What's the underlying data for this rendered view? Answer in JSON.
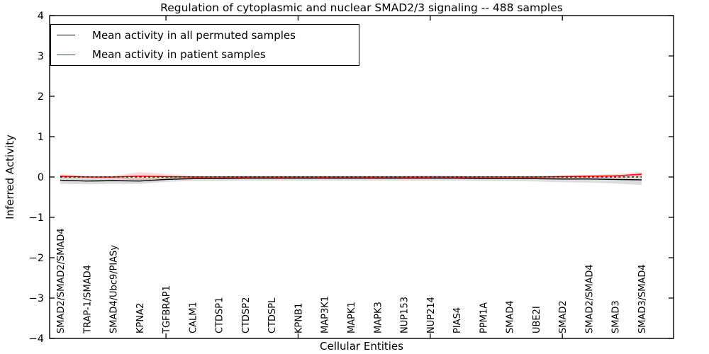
{
  "title": "Regulation of cytoplasmic and nuclear SMAD2/3 signaling -- 488 samples",
  "chart_data": {
    "type": "line",
    "title": "Regulation of cytoplasmic and nuclear SMAD2/3 signaling -- 488 samples",
    "xlabel": "Cellular Entities",
    "ylabel": "Inferred Activity",
    "ylim": [
      -4,
      4
    ],
    "yticks": [
      4,
      3,
      2,
      1,
      0,
      -1,
      -2,
      -3,
      -4
    ],
    "xtick_indices": [
      4,
      9,
      14,
      19
    ],
    "grid": false,
    "legend_position": "upper left",
    "categories": [
      "SMAD2/SMAD2/SMAD4",
      "TRAP-1/SMAD4",
      "SMAD4/Ubc9/PIASy",
      "KPNA2",
      "TGFBRAP1",
      "CALM1",
      "CTDSP1",
      "CTDSP2",
      "CTDSPL",
      "KPNB1",
      "MAP3K1",
      "MAPK1",
      "MAPK3",
      "NUP153",
      "NUP214",
      "PIAS4",
      "PPM1A",
      "SMAD4",
      "UBE2I",
      "SMAD2",
      "SMAD2/SMAD4",
      "SMAD3",
      "SMAD3/SMAD4"
    ],
    "series": [
      {
        "name": "Mean activity in all permuted samples",
        "color": "#000000",
        "values": [
          -0.08,
          -0.1,
          -0.09,
          -0.1,
          -0.06,
          -0.04,
          -0.04,
          -0.03,
          -0.03,
          -0.03,
          -0.03,
          -0.03,
          -0.03,
          -0.03,
          -0.03,
          -0.03,
          -0.04,
          -0.04,
          -0.04,
          -0.05,
          -0.05,
          -0.06,
          -0.07
        ],
        "std": [
          0.09,
          0.08,
          0.08,
          0.07,
          0.06,
          0.06,
          0.06,
          0.06,
          0.06,
          0.06,
          0.06,
          0.06,
          0.06,
          0.06,
          0.06,
          0.06,
          0.06,
          0.06,
          0.07,
          0.08,
          0.09,
          0.1,
          0.13
        ],
        "band_color": "#aaaaaa",
        "band_opacity": 0.4
      },
      {
        "name": "Mean activity in patient samples",
        "color": "#ff0000",
        "values": [
          0.02,
          0.0,
          0.0,
          0.02,
          0.01,
          0.0,
          0.0,
          0.0,
          0.0,
          0.0,
          0.0,
          0.0,
          0.0,
          0.0,
          0.0,
          0.0,
          0.0,
          0.0,
          0.0,
          0.01,
          0.02,
          0.03,
          0.07
        ],
        "std": [
          0.05,
          0.03,
          0.03,
          0.1,
          0.07,
          0.03,
          0.02,
          0.02,
          0.02,
          0.02,
          0.02,
          0.02,
          0.02,
          0.02,
          0.03,
          0.02,
          0.02,
          0.02,
          0.02,
          0.03,
          0.03,
          0.04,
          0.05
        ],
        "band_color": "#ff0000",
        "band_opacity": 0.15
      }
    ],
    "zero_line": {
      "value": 0,
      "style": "dashed",
      "color": "#000000"
    }
  },
  "legend": {
    "items": [
      {
        "label": "Mean activity in all permuted samples",
        "color": "#000000"
      },
      {
        "label": "Mean activity in patient samples",
        "color": "#ff0000"
      }
    ]
  }
}
